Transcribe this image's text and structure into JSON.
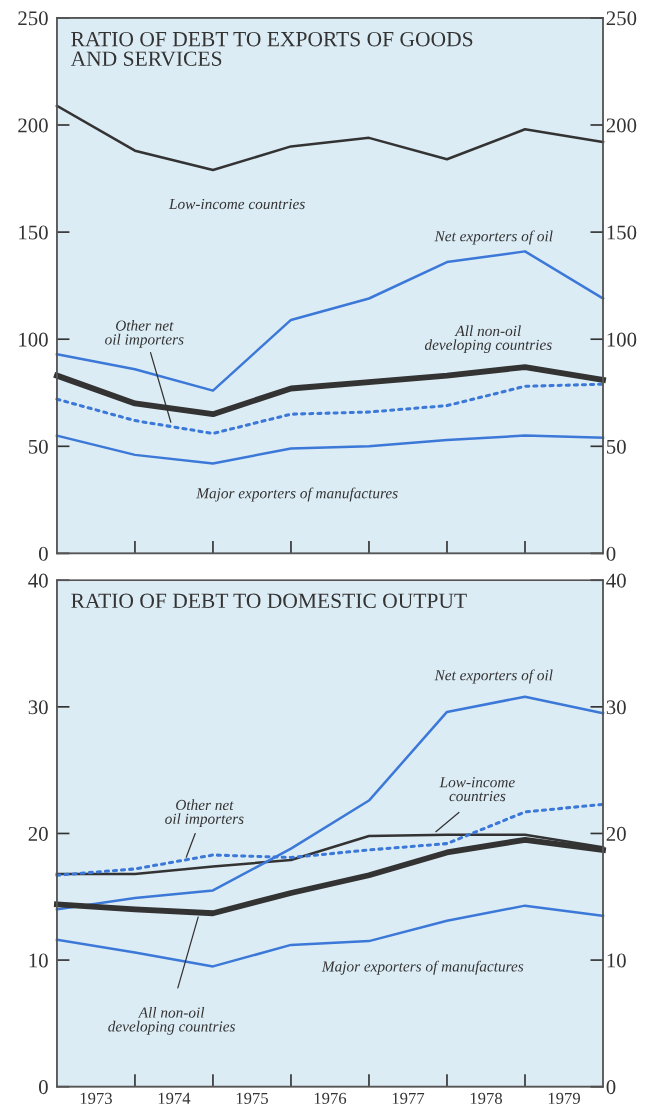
{
  "chart_data": [
    {
      "type": "line",
      "title": "RATIO OF DEBT TO EXPORTS OF GOODS\nAND SERVICES",
      "x": [
        1972.5,
        1973.5,
        1974.5,
        1975.5,
        1976.5,
        1977.5,
        1978.5,
        1979.5
      ],
      "series": [
        {
          "name": "Low-income countries",
          "color": "#333333",
          "line_style": "solid",
          "values": [
            209,
            188,
            179,
            190,
            194,
            184,
            198,
            192
          ]
        },
        {
          "name": "Net exporters of oil",
          "color": "#3b78d8",
          "line_style": "solid",
          "values": [
            93,
            86,
            76,
            109,
            119,
            136,
            141,
            119
          ]
        },
        {
          "name": "Other net\noil importers",
          "color": "#3b78d8",
          "line_style": "dotted",
          "values": [
            72,
            62,
            56,
            65,
            66,
            69,
            78,
            79
          ]
        },
        {
          "name": "All non-oil\ndeveloping countries",
          "color": "#333333",
          "line_style": "solid",
          "values": [
            83,
            70,
            65,
            77,
            80,
            83,
            87,
            81
          ]
        },
        {
          "name": "Major exporters of manufactures",
          "color": "#3b78d8",
          "line_style": "solid",
          "values": [
            55,
            46,
            42,
            49,
            50,
            53,
            55,
            54
          ]
        }
      ],
      "xlim": [
        1972.5,
        1979.5
      ],
      "xticks": [
        {
          "value": 1973.5,
          "label": null
        },
        {
          "value": 1974.5,
          "label": null
        },
        {
          "value": 1975.5,
          "label": null
        },
        {
          "value": 1976.5,
          "label": null
        },
        {
          "value": 1977.5,
          "label": null
        },
        {
          "value": 1978.5,
          "label": null
        }
      ],
      "ylim": [
        0,
        250
      ],
      "yticks": [
        0,
        50,
        100,
        150,
        200,
        250
      ],
      "y2lim": [
        0,
        250
      ],
      "y2ticks": [
        0,
        50,
        100,
        150,
        200,
        250
      ],
      "tick_labels": "y",
      "grid": false,
      "legend": false,
      "marker": "none"
    },
    {
      "type": "line",
      "title": "RATIO OF DEBT TO DOMESTIC OUTPUT",
      "x": [
        1972.5,
        1973.5,
        1974.5,
        1975.5,
        1976.5,
        1977.5,
        1978.5,
        1979.5
      ],
      "series": [
        {
          "name": "Low-income\ncountries",
          "color": "#333333",
          "line_style": "solid",
          "values": [
            16.8,
            16.8,
            17.4,
            17.9,
            19.8,
            19.9,
            19.9,
            18.9
          ]
        },
        {
          "name": "Net exporters of oil",
          "color": "#3b78d8",
          "line_style": "solid",
          "values": [
            14.0,
            14.9,
            15.5,
            18.8,
            22.6,
            29.6,
            30.8,
            29.5
          ]
        },
        {
          "name": "Other net\noil importers",
          "color": "#3b78d8",
          "line_style": "dotted",
          "values": [
            16.7,
            17.2,
            18.3,
            18.1,
            18.7,
            19.2,
            21.7,
            22.3
          ]
        },
        {
          "name": "All non-oil\ndeveloping countries",
          "color": "#333333",
          "line_style": "solid",
          "values": [
            14.4,
            14.0,
            13.7,
            15.3,
            16.7,
            18.5,
            19.5,
            18.7
          ]
        },
        {
          "name": "Major exporters of manufactures",
          "color": "#3b78d8",
          "line_style": "solid",
          "values": [
            11.6,
            10.6,
            9.5,
            11.2,
            11.5,
            13.1,
            14.3,
            13.5
          ]
        }
      ],
      "xlim": [
        1972.5,
        1979.5
      ],
      "xticks": [
        {
          "value": 1973,
          "label": "1973"
        },
        {
          "value": 1973.5,
          "label": null
        },
        {
          "value": 1974,
          "label": "1974"
        },
        {
          "value": 1974.5,
          "label": null
        },
        {
          "value": 1975,
          "label": "1975"
        },
        {
          "value": 1975.5,
          "label": null
        },
        {
          "value": 1976,
          "label": "1976"
        },
        {
          "value": 1976.5,
          "label": null
        },
        {
          "value": 1977,
          "label": "1977"
        },
        {
          "value": 1977.5,
          "label": null
        },
        {
          "value": 1978,
          "label": "1978"
        },
        {
          "value": 1978.5,
          "label": null
        },
        {
          "value": 1979,
          "label": "1979"
        }
      ],
      "ylim": [
        0,
        40
      ],
      "yticks": [
        0,
        10,
        20,
        30,
        40
      ],
      "y2lim": [
        0,
        40
      ],
      "y2ticks": [
        0,
        10,
        20,
        30,
        40
      ],
      "grid": false,
      "legend": false,
      "marker": "none"
    }
  ]
}
